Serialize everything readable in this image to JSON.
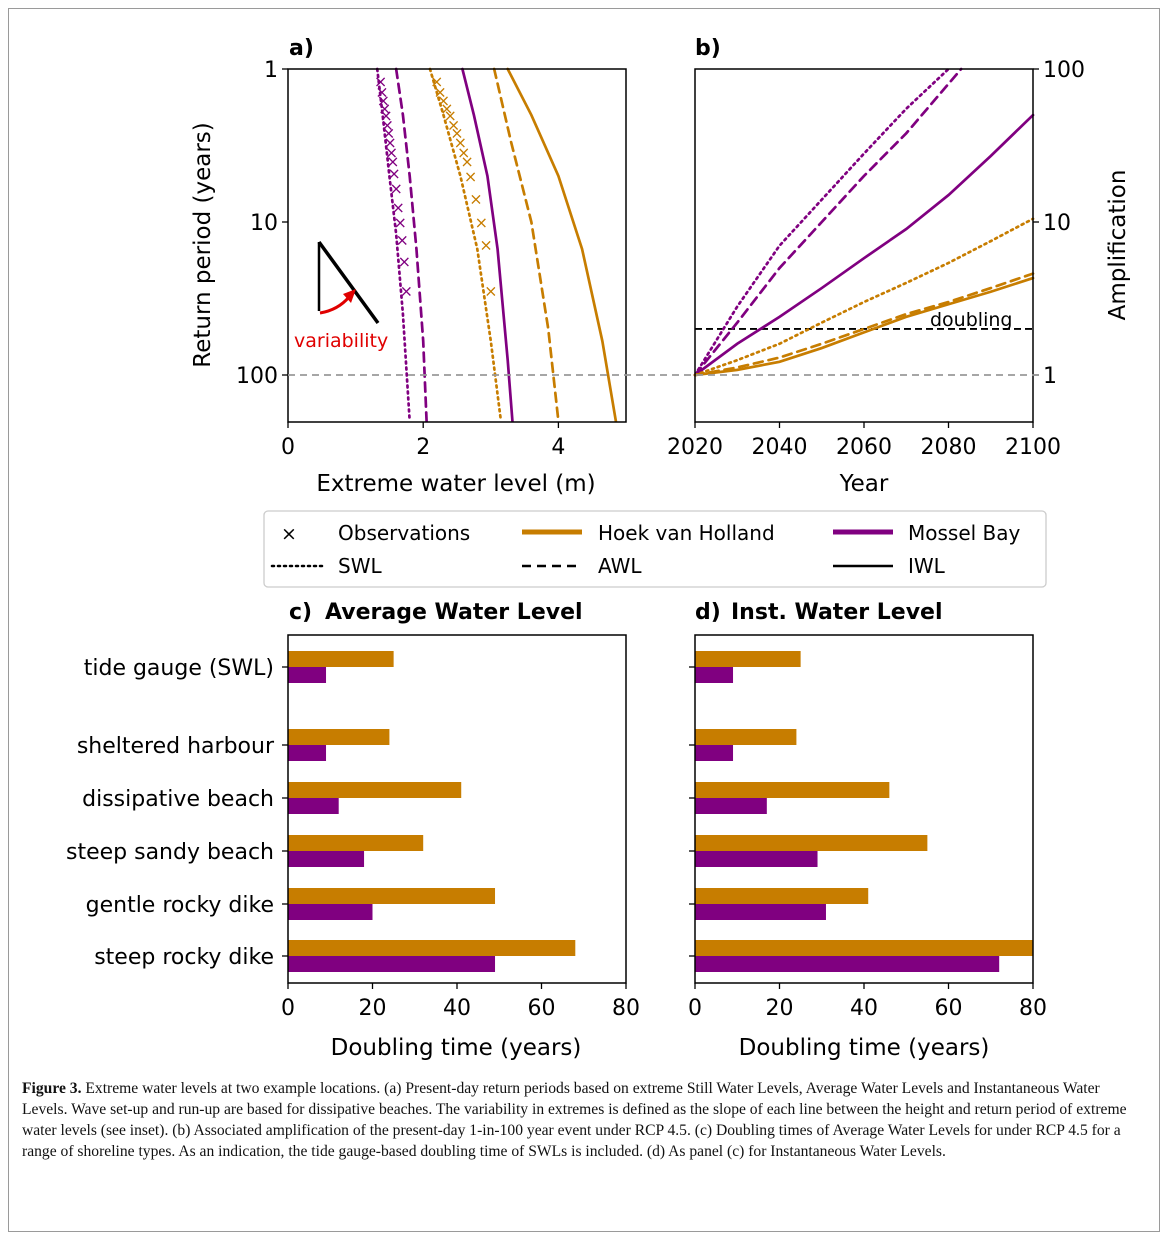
{
  "colors": {
    "hoek": "#c77d00",
    "mossel": "#800080",
    "black": "#000000",
    "gray": "#999999",
    "red": "#e00000"
  },
  "chart_data": [
    {
      "panel_label": "a)",
      "type": "line",
      "xlabel": "Extreme water level (m)",
      "ylabel": "Return period (years)",
      "xlim": [
        0,
        5
      ],
      "ylim": [
        1,
        200
      ],
      "yscale": "log-inverted",
      "xticks": [
        "0",
        "2",
        "4"
      ],
      "yticks": [
        "1",
        "10",
        "100"
      ],
      "inset_label": "variability",
      "series": [
        {
          "name": "Mossel Bay SWL observations",
          "style": "x",
          "color": "mossel",
          "x": [
            1.37,
            1.39,
            1.41,
            1.43,
            1.45,
            1.47,
            1.49,
            1.51,
            1.53,
            1.55,
            1.57,
            1.6,
            1.63,
            1.66,
            1.69,
            1.72,
            1.75
          ],
          "y": [
            1.2,
            1.4,
            1.6,
            1.8,
            2,
            2.3,
            2.6,
            3,
            3.5,
            4,
            4.8,
            6,
            8,
            10,
            13,
            18,
            28
          ]
        },
        {
          "name": "Mossel Bay SWL",
          "style": "dotted",
          "color": "mossel",
          "x": [
            1.32,
            1.4,
            1.5,
            1.6,
            1.7,
            1.8
          ],
          "y": [
            1,
            2,
            5,
            12,
            40,
            200
          ]
        },
        {
          "name": "Mossel Bay AWL",
          "style": "dashed",
          "color": "mossel",
          "x": [
            1.6,
            1.7,
            1.8,
            1.9,
            2.0,
            2.05
          ],
          "y": [
            1,
            2,
            5,
            15,
            60,
            200
          ]
        },
        {
          "name": "Mossel Bay IWL",
          "style": "solid",
          "color": "mossel",
          "x": [
            2.58,
            2.75,
            2.95,
            3.1,
            3.25,
            3.32
          ],
          "y": [
            1,
            2,
            5,
            15,
            80,
            200
          ]
        },
        {
          "name": "Hoek van Holland SWL observations",
          "style": "x",
          "color": "hoek",
          "x": [
            2.2,
            2.25,
            2.3,
            2.35,
            2.4,
            2.45,
            2.5,
            2.55,
            2.6,
            2.65,
            2.7,
            2.78,
            2.86,
            2.93,
            3.0
          ],
          "y": [
            1.2,
            1.4,
            1.6,
            1.8,
            2,
            2.3,
            2.6,
            3,
            3.5,
            4,
            5,
            7,
            10,
            14,
            28
          ]
        },
        {
          "name": "Hoek van Holland SWL",
          "style": "dotted",
          "color": "hoek",
          "x": [
            2.1,
            2.3,
            2.55,
            2.8,
            3.0,
            3.15
          ],
          "y": [
            1,
            2,
            5,
            15,
            60,
            200
          ]
        },
        {
          "name": "Hoek van Holland AWL",
          "style": "dashed",
          "color": "hoek",
          "x": [
            3.05,
            3.3,
            3.6,
            3.85,
            4.0
          ],
          "y": [
            1,
            3,
            10,
            50,
            200
          ]
        },
        {
          "name": "Hoek van Holland IWL",
          "style": "solid",
          "color": "hoek",
          "x": [
            3.25,
            3.6,
            4.0,
            4.35,
            4.65,
            4.85
          ],
          "y": [
            1,
            2,
            5,
            15,
            60,
            200
          ]
        }
      ]
    },
    {
      "panel_label": "b)",
      "type": "line",
      "xlabel": "Year",
      "ylabel": "Amplification",
      "xlim": [
        2020,
        2100
      ],
      "ylim": [
        0.5,
        100
      ],
      "yscale": "log",
      "xticks": [
        "2020",
        "2040",
        "2060",
        "2080",
        "2100"
      ],
      "yticks": [
        "1",
        "10",
        "100"
      ],
      "reference_label": "doubling",
      "series": [
        {
          "name": "Mossel Bay SWL",
          "style": "dotted",
          "color": "mossel",
          "x": [
            2020,
            2030,
            2040,
            2050,
            2060,
            2070,
            2080
          ],
          "y": [
            1,
            2.8,
            7,
            14,
            28,
            55,
            100
          ]
        },
        {
          "name": "Mossel Bay AWL",
          "style": "dashed",
          "color": "mossel",
          "x": [
            2020,
            2030,
            2040,
            2050,
            2060,
            2070,
            2080,
            2083
          ],
          "y": [
            1,
            2.2,
            5,
            10,
            20,
            38,
            80,
            100
          ]
        },
        {
          "name": "Mossel Bay IWL",
          "style": "solid",
          "color": "mossel",
          "x": [
            2020,
            2030,
            2040,
            2050,
            2060,
            2070,
            2080,
            2090,
            2100
          ],
          "y": [
            1,
            1.6,
            2.4,
            3.7,
            5.8,
            9,
            15,
            27,
            50
          ]
        },
        {
          "name": "Hoek van Holland SWL",
          "style": "dotted",
          "color": "hoek",
          "x": [
            2020,
            2030,
            2040,
            2050,
            2060,
            2070,
            2080,
            2090,
            2100
          ],
          "y": [
            1,
            1.25,
            1.6,
            2.2,
            3,
            4,
            5.4,
            7.5,
            10.5
          ]
        },
        {
          "name": "Hoek van Holland AWL",
          "style": "dashed",
          "color": "hoek",
          "x": [
            2020,
            2030,
            2040,
            2050,
            2060,
            2070,
            2080,
            2090,
            2100
          ],
          "y": [
            1,
            1.12,
            1.3,
            1.6,
            2,
            2.5,
            3,
            3.7,
            4.6
          ]
        },
        {
          "name": "Hoek van Holland IWL",
          "style": "solid",
          "color": "hoek",
          "x": [
            2020,
            2030,
            2040,
            2050,
            2060,
            2070,
            2080,
            2090,
            2100
          ],
          "y": [
            1,
            1.08,
            1.22,
            1.5,
            1.9,
            2.4,
            2.9,
            3.5,
            4.3
          ]
        }
      ]
    },
    {
      "panel_label": "c)",
      "title": "Average Water Level",
      "type": "bar",
      "orientation": "horizontal",
      "xlabel": "Doubling time (years)",
      "xlim": [
        0,
        80
      ],
      "xticks": [
        "0",
        "20",
        "40",
        "60",
        "80"
      ],
      "categories": [
        "tide gauge (SWL)",
        "sheltered harbour",
        "dissipative beach",
        "steep sandy beach",
        "gentle rocky dike",
        "steep rocky dike"
      ],
      "series": [
        {
          "name": "Hoek van Holland",
          "color": "hoek",
          "values": [
            25,
            24,
            41,
            32,
            49,
            68
          ]
        },
        {
          "name": "Mossel Bay",
          "color": "mossel",
          "values": [
            9,
            9,
            12,
            18,
            20,
            49
          ]
        }
      ]
    },
    {
      "panel_label": "d)",
      "title": "Inst. Water Level",
      "type": "bar",
      "orientation": "horizontal",
      "xlabel": "Doubling time (years)",
      "xlim": [
        0,
        80
      ],
      "xticks": [
        "0",
        "20",
        "40",
        "60",
        "80"
      ],
      "categories": [
        "tide gauge (SWL)",
        "sheltered harbour",
        "dissipative beach",
        "steep sandy beach",
        "gentle rocky dike",
        "steep rocky dike"
      ],
      "series": [
        {
          "name": "Hoek van Holland",
          "color": "hoek",
          "values": [
            25,
            24,
            46,
            55,
            41,
            80
          ]
        },
        {
          "name": "Mossel Bay",
          "color": "mossel",
          "values": [
            9,
            9,
            17,
            29,
            31,
            72
          ]
        }
      ]
    }
  ],
  "legend": {
    "items": [
      {
        "label": "Observations",
        "symbol": "x",
        "color": "black"
      },
      {
        "label": "Hoek van Holland",
        "symbol": "thick-line",
        "color": "hoek"
      },
      {
        "label": "Mossel Bay",
        "symbol": "thick-line",
        "color": "mossel"
      },
      {
        "label": "SWL",
        "symbol": "dotted",
        "color": "black"
      },
      {
        "label": "AWL",
        "symbol": "dashed",
        "color": "black"
      },
      {
        "label": "IWL",
        "symbol": "solid",
        "color": "black"
      }
    ]
  },
  "caption": {
    "label": "Figure 3.",
    "text": " Extreme water levels at two example locations. (a) Present-day return periods based on extreme Still Water Levels, Average Water Levels and Instantaneous Water Levels. Wave set-up and run-up are based for dissipative beaches. The variability in extremes is defined as the slope of each line between the height and return period of extreme water levels (see inset). (b) Associated amplification of the present-day 1-in-100 year event under RCP 4.5. (c) Doubling times of Average Water Levels for under RCP 4.5 for a range of shoreline types. As an indication, the tide gauge-based doubling time of SWLs is included. (d) As panel (c) for Instantaneous Water Levels."
  }
}
